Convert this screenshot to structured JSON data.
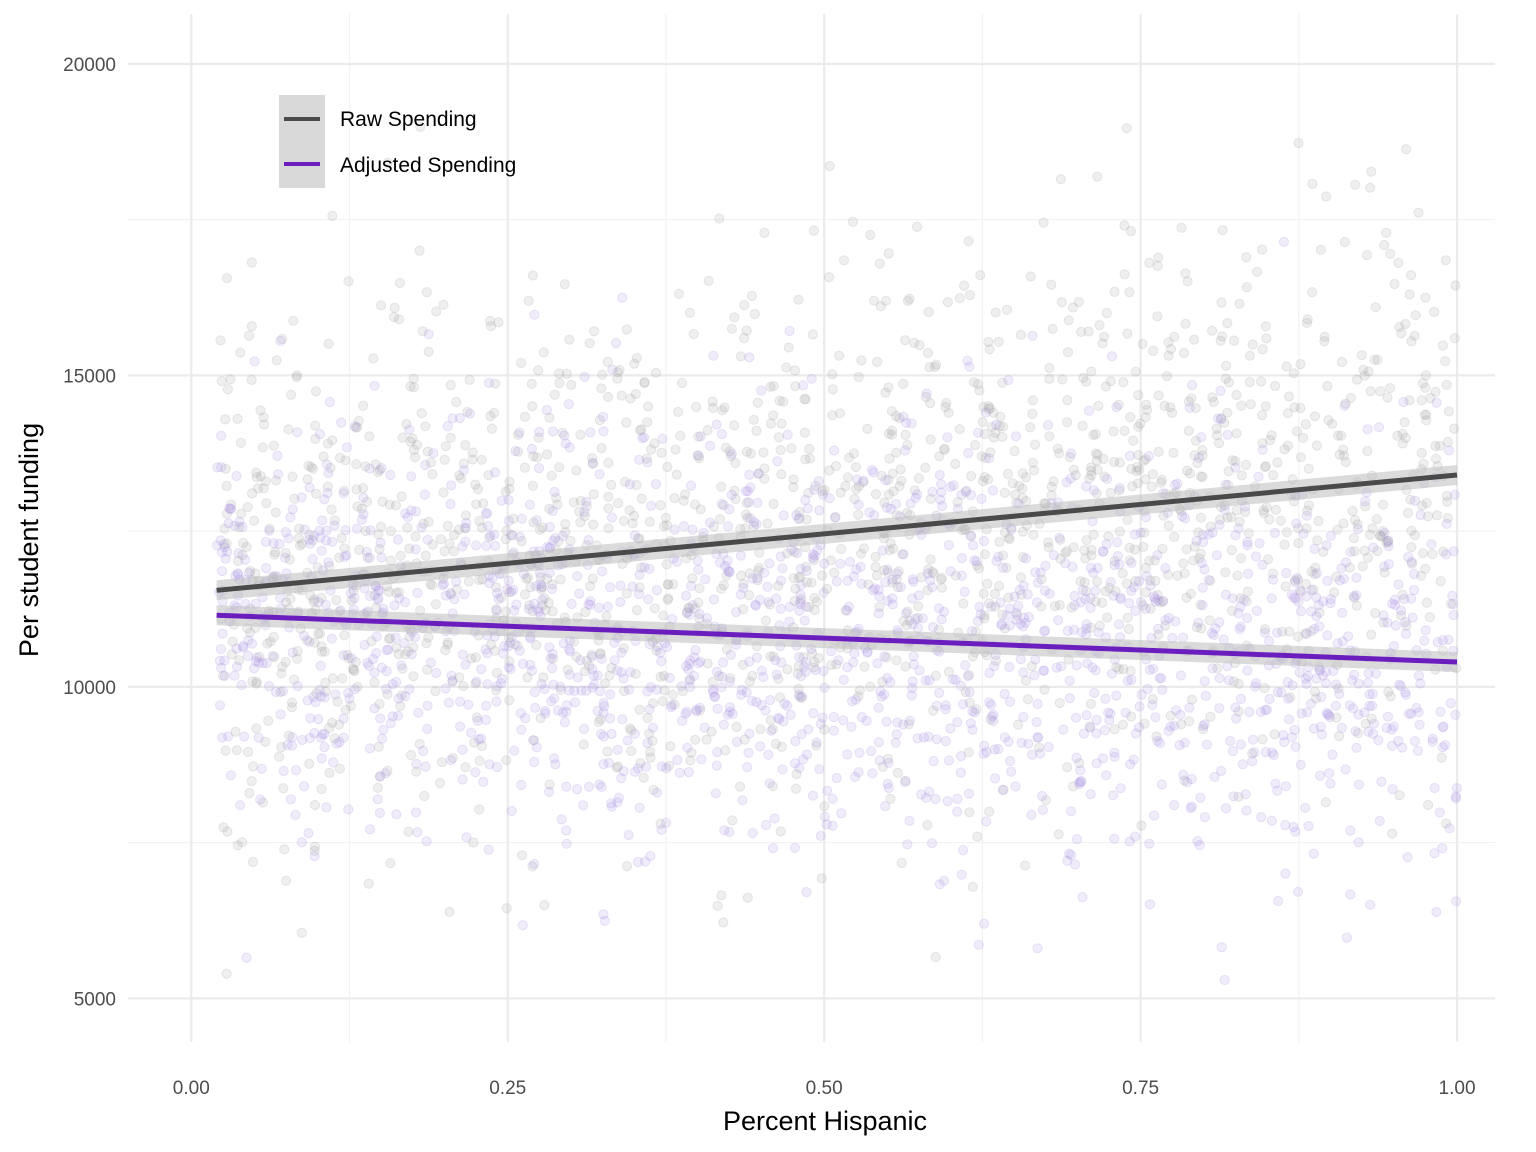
{
  "chart_data": {
    "type": "scatter",
    "title": "",
    "xlabel": "Percent Hispanic",
    "ylabel": "Per student funding",
    "xlim": [
      -0.05,
      1.03
    ],
    "ylim": [
      4300,
      20800
    ],
    "x_ticks": [
      0.0,
      0.25,
      0.5,
      0.75,
      1.0
    ],
    "x_tick_labels": [
      "0.00",
      "0.25",
      "0.50",
      "0.75",
      "1.00"
    ],
    "y_ticks": [
      5000,
      10000,
      15000,
      20000
    ],
    "y_tick_labels": [
      "5000",
      "10000",
      "15000",
      "20000"
    ],
    "grid": true,
    "legend_position": "top-left",
    "series": [
      {
        "name": "Raw Spending",
        "color": "#4a4a4a",
        "point_color": "#9e9e9e",
        "trend": {
          "x": [
            0.02,
            1.0
          ],
          "y": [
            11550,
            13400
          ]
        },
        "center_y": 12000,
        "spread": 2200,
        "n_points": 1700,
        "seed": 17
      },
      {
        "name": "Adjusted Spending",
        "color": "#6a1ebd",
        "point_color": "#a98ce0",
        "trend": {
          "x": [
            0.02,
            1.0
          ],
          "y": [
            11150,
            10400
          ]
        },
        "center_y": 10800,
        "spread": 1800,
        "n_points": 1700,
        "seed": 91
      }
    ]
  }
}
